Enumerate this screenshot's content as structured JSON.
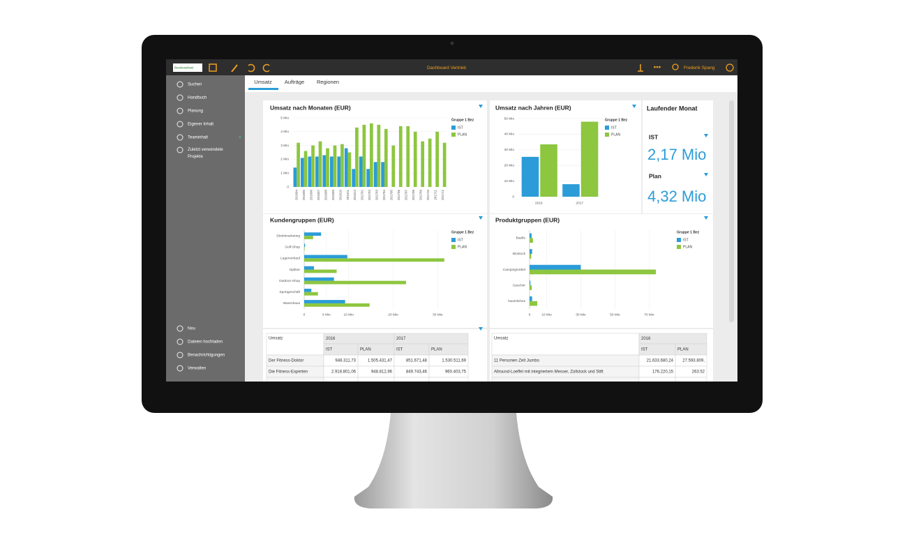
{
  "topbar": {
    "logo": "BusinessNavi",
    "dashboard": "Dashboard Vertrieb",
    "user": "Frederik Spang"
  },
  "sidebar": {
    "items": [
      "Suchen",
      "Handbuch",
      "Planung",
      "Eigener Inhalt",
      "Teaminhalt",
      "Zuletzt verwendete Projekte"
    ],
    "bottom_items": [
      "Neu",
      "Dateien hochladen",
      "Benachrichtigungen",
      "Verwalten"
    ]
  },
  "tabs": [
    "Umsatz",
    "Aufträge",
    "Regionen"
  ],
  "chart_data": [
    {
      "type": "bar",
      "title": "Umsatz nach Monaten (EUR)",
      "legend_title": "Gruppe 1 Bez",
      "categories": [
        "201604",
        "201605",
        "201606",
        "201607",
        "201608",
        "201609",
        "201610",
        "201611",
        "201612",
        "201701",
        "201702",
        "201703",
        "201704",
        "201705",
        "201706",
        "201707",
        "201708",
        "201709",
        "201710",
        "201711",
        "201712"
      ],
      "series": [
        {
          "name": "IST",
          "color": "#2b9cd8",
          "values": [
            1.4,
            2.1,
            2.2,
            2.2,
            2.3,
            2.2,
            2.2,
            2.8,
            1.3,
            2.2,
            1.3,
            1.8,
            1.8,
            null,
            null,
            null,
            null,
            null,
            null,
            null,
            null
          ]
        },
        {
          "name": "PLAN",
          "color": "#8dc63f",
          "values": [
            3.2,
            2.6,
            3.0,
            3.3,
            2.8,
            3.0,
            3.1,
            2.5,
            4.3,
            4.5,
            4.6,
            4.5,
            4.2,
            3.0,
            4.4,
            4.4,
            4.0,
            3.3,
            3.5,
            4.0,
            3.2
          ]
        }
      ],
      "ylim": [
        0,
        5
      ],
      "yticks": [
        0,
        {
          "value": 1,
          "label": "1 Mio"
        },
        {
          "value": 2,
          "label": "2 Mio"
        },
        {
          "value": 3,
          "label": "3 Mio"
        },
        {
          "value": 4,
          "label": "4 Mio"
        },
        {
          "value": 5,
          "label": "5 Mio"
        }
      ],
      "grid": true
    },
    {
      "type": "bar",
      "title": "Umsatz nach Jahren (EUR)",
      "legend_title": "Gruppe 1 Bez",
      "categories": [
        "2016",
        "2017"
      ],
      "series": [
        {
          "name": "IST",
          "color": "#2b9cd8",
          "values": [
            25.5,
            8
          ]
        },
        {
          "name": "PLAN",
          "color": "#8dc63f",
          "values": [
            33.5,
            48
          ]
        }
      ],
      "ylim": [
        0,
        50
      ],
      "yticks": [
        0,
        {
          "value": 10,
          "label": "10 Mio"
        },
        {
          "value": 20,
          "label": "20 Mio"
        },
        {
          "value": 30,
          "label": "30 Mio"
        },
        {
          "value": 40,
          "label": "40 Mio"
        },
        {
          "value": 50,
          "label": "50 Mio"
        }
      ],
      "grid": true
    },
    {
      "type": "hbar",
      "title": "Kundengruppen (EUR)",
      "legend_title": "Gruppe 1 Bez",
      "categories": [
        "Direktmarketing",
        "Golf-Shop",
        "Lagerverkauf",
        "Optiker",
        "Outdoor-Shop",
        "Sportgeschäft",
        "Warenhaus"
      ],
      "series": [
        {
          "name": "IST",
          "color": "#2b9cd8",
          "values": [
            3.8,
            0.2,
            9.7,
            2.2,
            6.7,
            1.6,
            9.2
          ]
        },
        {
          "name": "PLAN",
          "color": "#8dc63f",
          "values": [
            2.0,
            0.1,
            31.5,
            7.3,
            22.9,
            3.1,
            14.7
          ]
        }
      ],
      "xlim": [
        0,
        32
      ],
      "xticks": [
        0,
        {
          "value": 5,
          "label": "5 Mio"
        },
        {
          "value": 10,
          "label": "10 Mio"
        },
        {
          "value": 20,
          "label": "20 Mio"
        },
        {
          "value": 30,
          "label": "30 Mio"
        }
      ],
      "grid": true
    },
    {
      "type": "hbar",
      "title": "Produktgruppen (EUR)",
      "legend_title": "Gruppe 1 Bez",
      "categories": [
        "Baelle",
        "Biostock",
        "Campingmöbel",
        "Geschirr",
        "Nuetzliches"
      ],
      "series": [
        {
          "name": "IST",
          "color": "#2b9cd8",
          "values": [
            1.2,
            1.5,
            30,
            0.5,
            1.5
          ]
        },
        {
          "name": "PLAN",
          "color": "#8dc63f",
          "values": [
            2,
            1,
            74,
            1.3,
            4.5
          ]
        }
      ],
      "xlim": [
        0,
        76
      ],
      "xticks": [
        0,
        {
          "value": 10,
          "label": "10 Mio"
        },
        {
          "value": 30,
          "label": "30 Mio"
        },
        {
          "value": 50,
          "label": "50 Mio"
        },
        {
          "value": 70,
          "label": "70 Mio"
        }
      ],
      "grid": true
    }
  ],
  "kpi": {
    "title": "Laufender Monat",
    "items": [
      {
        "label": "IST",
        "value": "2,17 Mio"
      },
      {
        "label": "Plan",
        "value": "4,32 Mio"
      }
    ]
  },
  "tables": [
    {
      "header": [
        "Umsatz",
        "2016",
        "2017"
      ],
      "subheader": [
        "IST",
        "PLAN",
        "IST",
        "PLAN"
      ],
      "rows": [
        [
          "Der Fitness-Doktor",
          "948.311,73",
          "1.505.431,47",
          "851.671,48",
          "1.530.511,69"
        ],
        [
          "Die Fitness-Experten",
          "2.918.801,06",
          "948.812,96",
          "849.743,46",
          "960.403,75"
        ]
      ]
    },
    {
      "header": [
        "Umsatz",
        "2016"
      ],
      "subheader": [
        "IST",
        "PLAN"
      ],
      "rows": [
        [
          "11 Personen Zelt Jumbo",
          "21.633.680,24",
          "27.593.809,"
        ],
        [
          "Allround-Loeffel mit integriertem Messer, Zollstock und Stift",
          "176.220,15",
          "263.52"
        ]
      ]
    }
  ]
}
